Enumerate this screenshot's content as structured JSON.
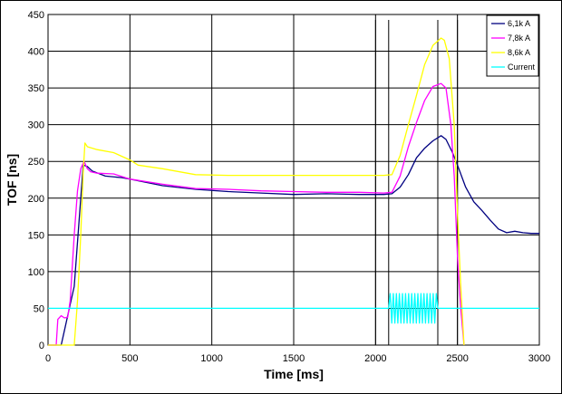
{
  "chart_data": {
    "type": "line",
    "xlabel": "Time [ms]",
    "ylabel": "TOF [ns]",
    "xlim": [
      0,
      3000
    ],
    "ylim": [
      0,
      450
    ],
    "xticks": [
      0,
      500,
      1000,
      1500,
      2000,
      2500,
      3000
    ],
    "yticks": [
      0,
      50,
      100,
      150,
      200,
      250,
      300,
      350,
      400,
      450
    ],
    "grid": true,
    "legend": "top-right",
    "markers": [
      2000,
      2080,
      2380,
      2500
    ],
    "series": [
      {
        "name": "6,1k A",
        "color": "#000080",
        "points": [
          [
            0,
            0
          ],
          [
            80,
            0
          ],
          [
            100,
            20
          ],
          [
            130,
            50
          ],
          [
            160,
            80
          ],
          [
            190,
            170
          ],
          [
            215,
            245
          ],
          [
            240,
            243
          ],
          [
            270,
            237
          ],
          [
            350,
            230
          ],
          [
            450,
            228
          ],
          [
            500,
            226
          ],
          [
            700,
            217
          ],
          [
            900,
            212
          ],
          [
            1100,
            209
          ],
          [
            1300,
            207
          ],
          [
            1500,
            205
          ],
          [
            1700,
            206
          ],
          [
            1900,
            205
          ],
          [
            2050,
            205
          ],
          [
            2100,
            206
          ],
          [
            2150,
            215
          ],
          [
            2200,
            232
          ],
          [
            2250,
            255
          ],
          [
            2300,
            268
          ],
          [
            2350,
            278
          ],
          [
            2400,
            285
          ],
          [
            2430,
            280
          ],
          [
            2470,
            262
          ],
          [
            2500,
            245
          ],
          [
            2550,
            215
          ],
          [
            2600,
            195
          ],
          [
            2650,
            183
          ],
          [
            2700,
            170
          ],
          [
            2750,
            158
          ],
          [
            2800,
            153
          ],
          [
            2850,
            155
          ],
          [
            2900,
            153
          ],
          [
            2950,
            152
          ],
          [
            3000,
            152
          ]
        ]
      },
      {
        "name": "7,8k A",
        "color": "#ff00ff",
        "points": [
          [
            0,
            0
          ],
          [
            50,
            0
          ],
          [
            60,
            35
          ],
          [
            80,
            40
          ],
          [
            100,
            37
          ],
          [
            120,
            38
          ],
          [
            135,
            60
          ],
          [
            160,
            150
          ],
          [
            180,
            210
          ],
          [
            200,
            240
          ],
          [
            220,
            250
          ],
          [
            240,
            240
          ],
          [
            260,
            236
          ],
          [
            300,
            234
          ],
          [
            400,
            233
          ],
          [
            500,
            226
          ],
          [
            700,
            219
          ],
          [
            900,
            213
          ],
          [
            1100,
            212
          ],
          [
            1300,
            210
          ],
          [
            1500,
            209
          ],
          [
            1700,
            208
          ],
          [
            1900,
            208
          ],
          [
            2050,
            207
          ],
          [
            2100,
            208
          ],
          [
            2150,
            230
          ],
          [
            2200,
            270
          ],
          [
            2250,
            303
          ],
          [
            2300,
            333
          ],
          [
            2350,
            352
          ],
          [
            2400,
            356
          ],
          [
            2430,
            350
          ],
          [
            2460,
            300
          ],
          [
            2480,
            230
          ],
          [
            2500,
            120
          ],
          [
            2520,
            50
          ],
          [
            2540,
            0
          ]
        ]
      },
      {
        "name": "8,6k A",
        "color": "#ffff00",
        "points": [
          [
            0,
            0
          ],
          [
            160,
            0
          ],
          [
            180,
            60
          ],
          [
            200,
            150
          ],
          [
            215,
            235
          ],
          [
            225,
            275
          ],
          [
            240,
            270
          ],
          [
            300,
            266
          ],
          [
            400,
            262
          ],
          [
            500,
            252
          ],
          [
            550,
            245
          ],
          [
            700,
            240
          ],
          [
            900,
            232
          ],
          [
            1100,
            231
          ],
          [
            1300,
            231
          ],
          [
            1500,
            231
          ],
          [
            1700,
            231
          ],
          [
            1900,
            231
          ],
          [
            2050,
            231
          ],
          [
            2100,
            232
          ],
          [
            2150,
            258
          ],
          [
            2200,
            300
          ],
          [
            2250,
            340
          ],
          [
            2300,
            382
          ],
          [
            2350,
            408
          ],
          [
            2400,
            418
          ],
          [
            2420,
            415
          ],
          [
            2450,
            390
          ],
          [
            2480,
            300
          ],
          [
            2500,
            180
          ],
          [
            2520,
            80
          ],
          [
            2540,
            0
          ]
        ]
      },
      {
        "name": "Current",
        "color": "#00ffff",
        "points": [
          [
            0,
            50
          ],
          [
            2080,
            50
          ],
          [
            2380,
            50
          ],
          [
            3000,
            50
          ]
        ],
        "oscillation": {
          "x_start": 2080,
          "x_end": 2380,
          "amplitude": 20,
          "cycles": 16
        }
      }
    ]
  }
}
